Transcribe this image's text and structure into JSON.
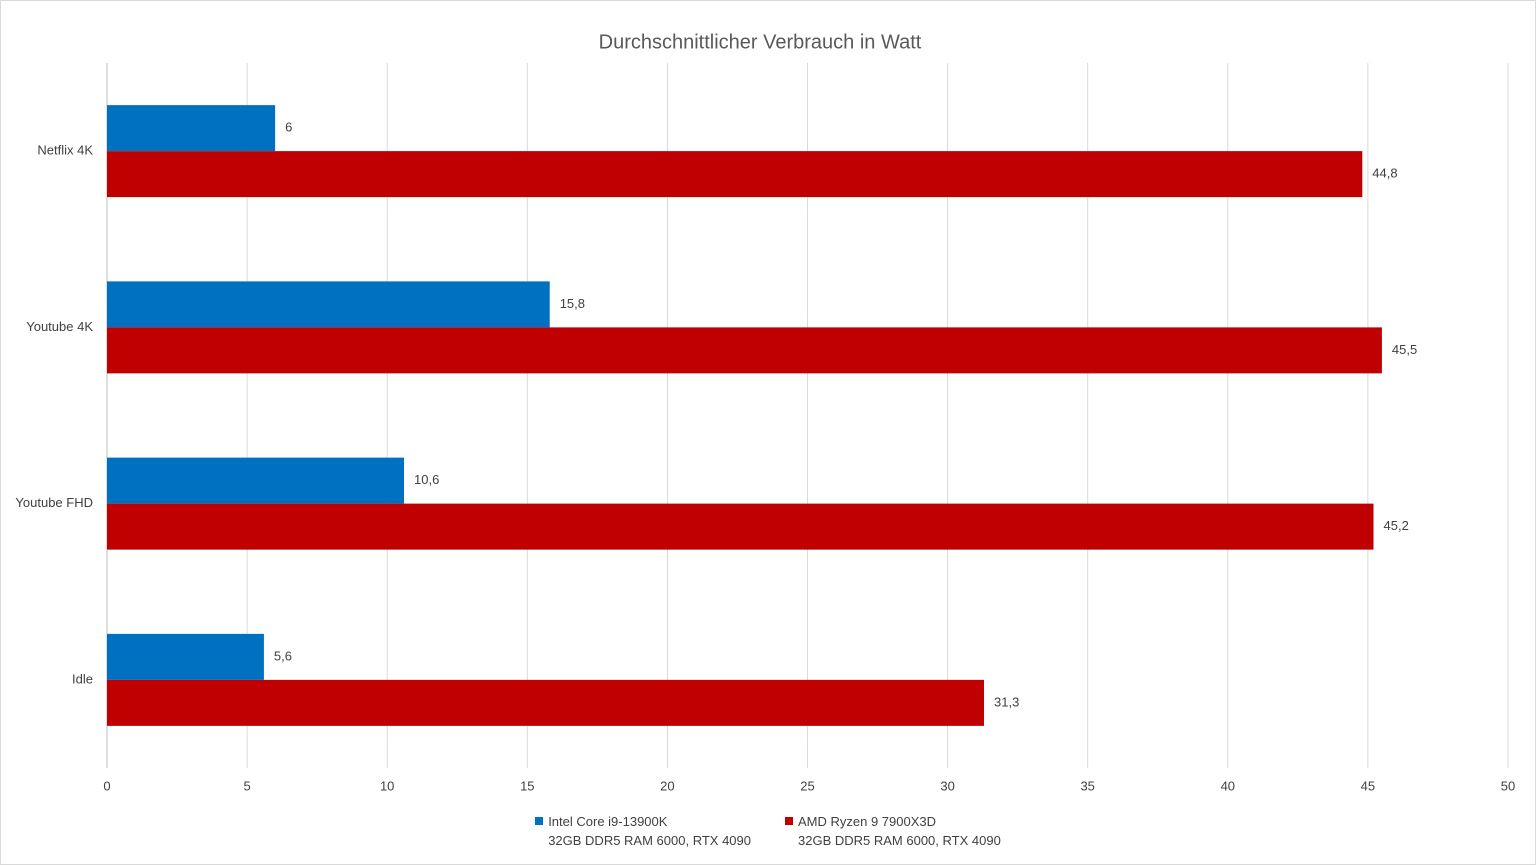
{
  "chart_data": {
    "type": "hbar",
    "title": "Durchschnittlicher Verbrauch in Watt",
    "categories": [
      "Netflix 4K",
      "Youtube 4K",
      "Youtube FHD",
      "Idle"
    ],
    "series": [
      {
        "name": "Intel Core i9-13900K\n32GB DDR5 RAM 6000, RTX 4090",
        "color": "#0070c0",
        "values": [
          6,
          15.8,
          10.6,
          5.6
        ],
        "value_labels": [
          "6",
          "15,8",
          "10,6",
          "5,6"
        ]
      },
      {
        "name": "AMD Ryzen 9 7900X3D\n32GB DDR5 RAM 6000, RTX 4090",
        "color": "#c00000",
        "values": [
          44.8,
          45.5,
          45.2,
          31.3
        ],
        "value_labels": [
          "44,8",
          "45,5",
          "45,2",
          "31,3"
        ]
      }
    ],
    "xlim": [
      0,
      50
    ],
    "xticks": [
      0,
      5,
      10,
      15,
      20,
      25,
      30,
      35,
      40,
      45,
      50
    ],
    "grid": true,
    "legend": "bottom"
  }
}
